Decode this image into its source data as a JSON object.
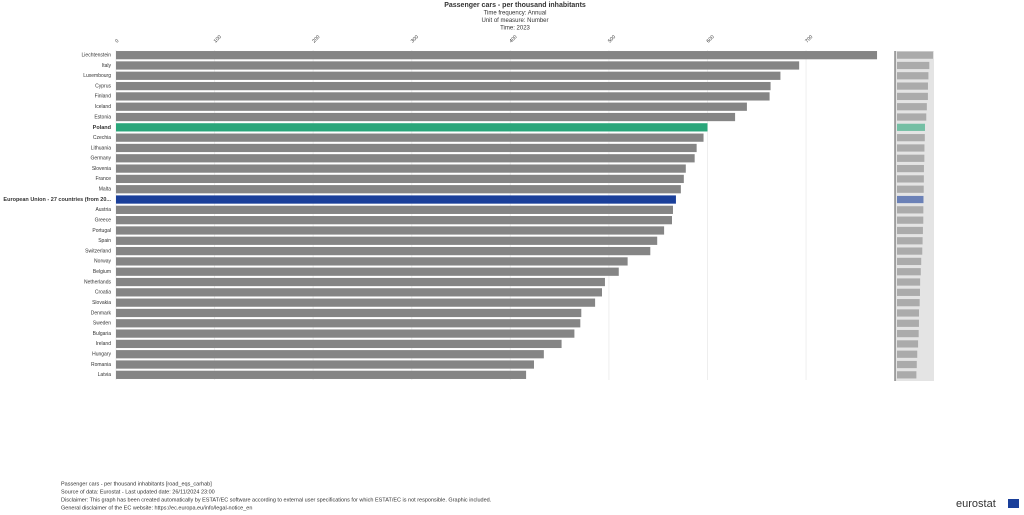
{
  "chart_data": {
    "type": "bar",
    "title": "Passenger cars - per thousand inhabitants",
    "subtitles": [
      "Time frequency:  Annual",
      "Unit of measure:  Number",
      "Time:  2023"
    ],
    "categories": [
      "Liechtenstein",
      "Italy",
      "Luxembourg",
      "Cyprus",
      "Finland",
      "Iceland",
      "Estonia",
      "Poland",
      "Czechia",
      "Lithuania",
      "Germany",
      "Slovenia",
      "France",
      "Malta",
      "European Union - 27 countries (from 20...",
      "Austria",
      "Greece",
      "Portugal",
      "Spain",
      "Switzerland",
      "Norway",
      "Belgium",
      "Netherlands",
      "Croatia",
      "Slovakia",
      "Denmark",
      "Sweden",
      "Bulgaria",
      "Ireland",
      "Hungary",
      "Romania",
      "Latvia"
    ],
    "series": [
      {
        "color": "#858585",
        "values": [
          772,
          693,
          674,
          664,
          663,
          640,
          628,
          600,
          596,
          589,
          587,
          578,
          576,
          573,
          568,
          565,
          564,
          556,
          549,
          542,
          519,
          510,
          496,
          493,
          486,
          472,
          471,
          465,
          452,
          434,
          424,
          416
        ],
        "colors": [
          "#858585",
          "#858585",
          "#858585",
          "#858585",
          "#858585",
          "#858585",
          "#858585",
          "#2aa67a",
          "#858585",
          "#858585",
          "#858585",
          "#858585",
          "#858585",
          "#858585",
          "#1a3f9a",
          "#858585",
          "#858585",
          "#858585",
          "#858585",
          "#858585",
          "#858585",
          "#858585",
          "#858585",
          "#858585",
          "#858585",
          "#858585",
          "#858585",
          "#858585",
          "#858585",
          "#858585",
          "#858585",
          "#858585"
        ]
      }
    ],
    "xlim": [
      0,
      775
    ],
    "xticks": [
      0,
      100,
      200,
      300,
      400,
      500,
      600,
      700
    ],
    "grid": true,
    "footer": [
      "Passenger cars - per thousand inhabitants [road_eqs_carhab]",
      "Source of data: Eurostat - Last updated date: 26/11/2024 23:00",
      "Disclaimer: This graph has been created automatically by ESTAT/EC software according to external user specifications for which ESTAT/EC is not responsible. Graphic included.",
      "General disclaimer of the EC website: https://ec.europa.eu/info/legal-notice_en"
    ],
    "logo": "eurostat"
  }
}
